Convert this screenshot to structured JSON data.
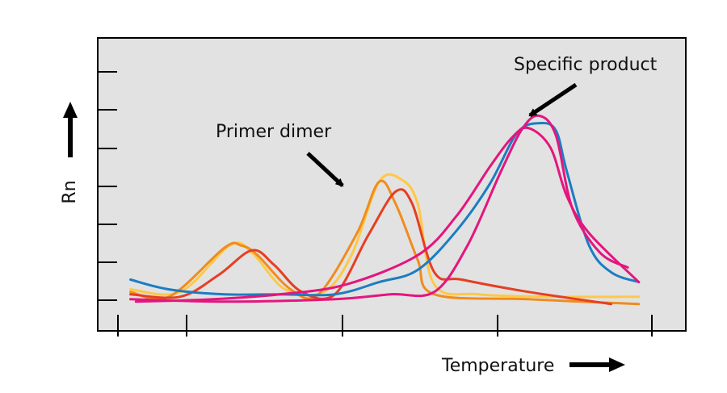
{
  "chart_data": {
    "type": "line",
    "title": "",
    "xlabel": "Temperature",
    "ylabel": "Rn",
    "grid": false,
    "legend": "none",
    "xlim": [
      0,
      100
    ],
    "ylim": [
      0,
      100
    ],
    "annotations": [
      {
        "text": "Primer dimer",
        "x": 56,
        "y": 64
      },
      {
        "text": "Specific product",
        "x": 83,
        "y": 95
      }
    ],
    "series": [
      {
        "color": "#FFC845",
        "points": [
          [
            3,
            12
          ],
          [
            12,
            11
          ],
          [
            21,
            30
          ],
          [
            25,
            27
          ],
          [
            31,
            12
          ],
          [
            38,
            11
          ],
          [
            43,
            26
          ],
          [
            48,
            56
          ],
          [
            52,
            57
          ],
          [
            55,
            47
          ],
          [
            58,
            14
          ],
          [
            66,
            10
          ],
          [
            80,
            9
          ],
          [
            95,
            9
          ]
        ]
      },
      {
        "color": "#F08C1E",
        "points": [
          [
            3,
            11
          ],
          [
            10,
            9
          ],
          [
            20,
            29
          ],
          [
            23,
            30
          ],
          [
            26,
            26
          ],
          [
            32,
            12
          ],
          [
            37,
            10
          ],
          [
            44,
            35
          ],
          [
            48,
            56
          ],
          [
            51,
            47
          ],
          [
            55,
            24
          ],
          [
            58,
            10
          ],
          [
            75,
            8
          ],
          [
            95,
            6
          ]
        ]
      },
      {
        "color": "#E63E22",
        "points": [
          [
            3,
            10
          ],
          [
            12,
            9
          ],
          [
            19,
            18
          ],
          [
            25,
            28
          ],
          [
            29,
            22
          ],
          [
            34,
            11
          ],
          [
            40,
            10
          ],
          [
            46,
            34
          ],
          [
            51,
            52
          ],
          [
            54,
            47
          ],
          [
            58,
            19
          ],
          [
            63,
            16
          ],
          [
            75,
            11
          ],
          [
            90,
            6
          ]
        ]
      },
      {
        "color": "#1C7DC1",
        "points": [
          [
            3,
            16
          ],
          [
            10,
            12
          ],
          [
            20,
            10
          ],
          [
            30,
            10
          ],
          [
            40,
            10
          ],
          [
            48,
            15
          ],
          [
            55,
            20
          ],
          [
            62,
            36
          ],
          [
            68,
            55
          ],
          [
            73,
            76
          ],
          [
            77,
            80
          ],
          [
            80,
            77
          ],
          [
            82,
            60
          ],
          [
            86,
            30
          ],
          [
            90,
            19
          ],
          [
            95,
            15
          ]
        ]
      },
      {
        "color": "#E3167F",
        "points": [
          [
            3,
            8
          ],
          [
            20,
            7
          ],
          [
            40,
            8
          ],
          [
            50,
            10
          ],
          [
            58,
            11
          ],
          [
            64,
            30
          ],
          [
            70,
            60
          ],
          [
            74,
            78
          ],
          [
            77,
            83
          ],
          [
            80,
            75
          ],
          [
            83,
            45
          ],
          [
            88,
            27
          ],
          [
            93,
            21
          ]
        ]
      },
      {
        "color": "#E3167F",
        "points": [
          [
            4,
            7
          ],
          [
            18,
            8
          ],
          [
            30,
            10
          ],
          [
            42,
            14
          ],
          [
            55,
            26
          ],
          [
            62,
            42
          ],
          [
            68,
            62
          ],
          [
            72,
            74
          ],
          [
            75,
            78
          ],
          [
            79,
            70
          ],
          [
            82,
            50
          ],
          [
            86,
            35
          ],
          [
            95,
            15
          ]
        ]
      }
    ]
  }
}
